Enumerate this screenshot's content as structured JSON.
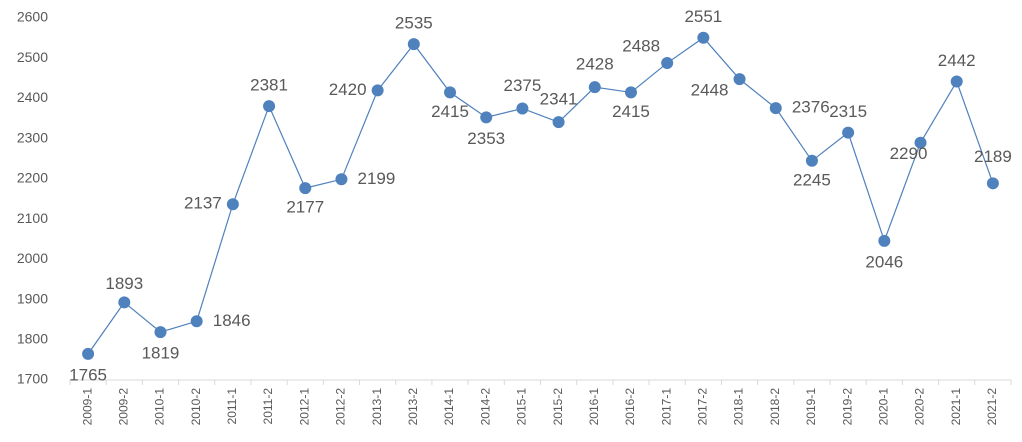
{
  "chart_data": {
    "type": "line",
    "categories": [
      "2009-1",
      "2009-2",
      "2010-1",
      "2010-2",
      "2011-1",
      "2011-2",
      "2012-1",
      "2012-2",
      "2013-1",
      "2013-2",
      "2014-1",
      "2014-2",
      "2015-1",
      "2015-2",
      "2016-1",
      "2016-2",
      "2017-1",
      "2017-2",
      "2018-1",
      "2018-2",
      "2019-1",
      "2019-2",
      "2020-1",
      "2020-2",
      "2021-1",
      "2021-2"
    ],
    "values": [
      1765,
      1893,
      1819,
      1846,
      2137,
      2381,
      2177,
      2199,
      2420,
      2535,
      2415,
      2353,
      2375,
      2341,
      2428,
      2415,
      2488,
      2551,
      2448,
      2376,
      2245,
      2315,
      2046,
      2290,
      2442,
      2189
    ],
    "color": "#4f81bd",
    "ylim": [
      1700,
      2600
    ],
    "yticks": [
      1700,
      1800,
      1900,
      2000,
      2100,
      2200,
      2300,
      2400,
      2500,
      2600
    ],
    "grid": false
  }
}
